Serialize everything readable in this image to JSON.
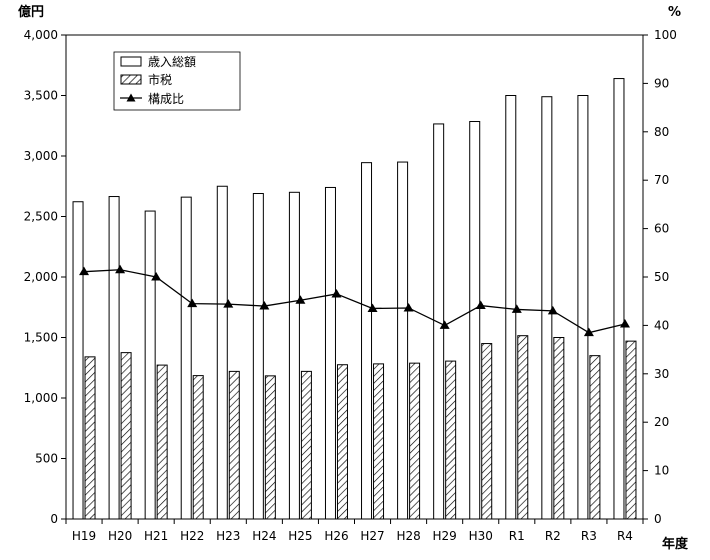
{
  "chart_data": {
    "type": "bar",
    "categories": [
      "H19",
      "H20",
      "H21",
      "H22",
      "H23",
      "H24",
      "H25",
      "H26",
      "H27",
      "H28",
      "H29",
      "H30",
      "R1",
      "R2",
      "R3",
      "R4"
    ],
    "series": [
      {
        "name": "歳入総額",
        "axis": "left",
        "style": "hollow-bar",
        "values": [
          2622,
          2665,
          2545,
          2660,
          2750,
          2690,
          2700,
          2740,
          2945,
          2950,
          3265,
          3285,
          3500,
          3490,
          3500,
          3640
        ]
      },
      {
        "name": "市税",
        "axis": "left",
        "style": "hatched-bar",
        "values": [
          1340,
          1375,
          1272,
          1185,
          1220,
          1183,
          1220,
          1275,
          1282,
          1288,
          1305,
          1450,
          1515,
          1500,
          1350,
          1470
        ]
      },
      {
        "name": "構成比",
        "axis": "right",
        "style": "line-triangle",
        "values": [
          51.1,
          51.5,
          50.0,
          44.5,
          44.4,
          44.0,
          45.2,
          46.5,
          43.5,
          43.6,
          40.0,
          44.1,
          43.3,
          43.0,
          38.5,
          40.3
        ]
      }
    ],
    "y_left": {
      "unit_label": "億円",
      "range": [
        0,
        4000
      ],
      "ticks": [
        "0",
        "500",
        "1,000",
        "1,500",
        "2,000",
        "2,500",
        "3,000",
        "3,500",
        "4,000"
      ]
    },
    "y_right": {
      "unit_label": "%",
      "range": [
        0,
        100
      ],
      "ticks": [
        "0",
        "10",
        "20",
        "30",
        "40",
        "50",
        "60",
        "70",
        "80",
        "90",
        "100"
      ]
    },
    "x_unit_label": "年度",
    "legend": {
      "placement": "top-left",
      "items": [
        "歳入総額",
        "市税",
        "構成比"
      ]
    },
    "grid": false
  }
}
